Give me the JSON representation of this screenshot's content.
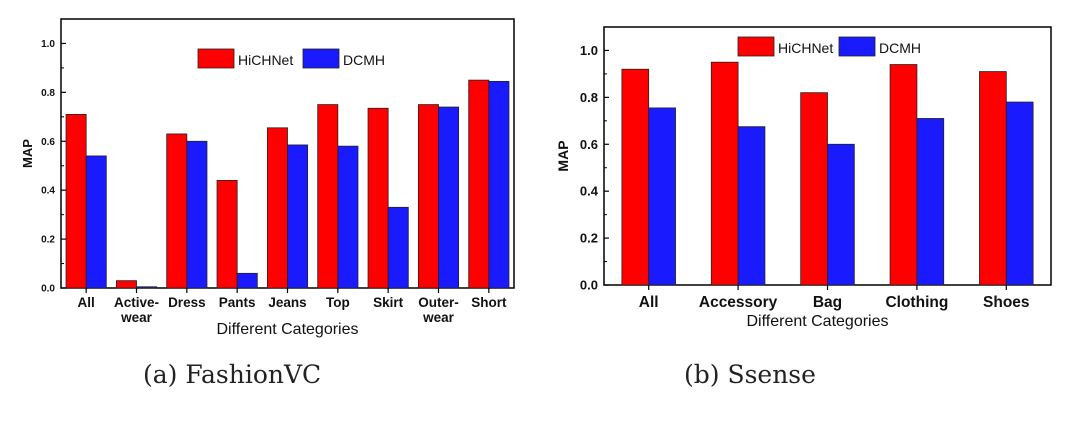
{
  "colors": {
    "series1": "#ff0000",
    "series2": "#1a1aff",
    "stroke": "#000000"
  },
  "chart_data": [
    {
      "type": "bar",
      "caption": "(a)  FashionVC",
      "categories": [
        [
          "All"
        ],
        [
          "Active-",
          "wear"
        ],
        [
          "Dress"
        ],
        [
          "Pants"
        ],
        [
          "Jeans"
        ],
        [
          "Top"
        ],
        [
          "Skirt"
        ],
        [
          "Outer-",
          "wear"
        ],
        [
          "Short"
        ]
      ],
      "series": [
        {
          "name": "HiCHNet",
          "values": [
            0.71,
            0.03,
            0.63,
            0.44,
            0.655,
            0.75,
            0.735,
            0.75,
            0.85
          ]
        },
        {
          "name": "DCMH",
          "values": [
            0.54,
            0.005,
            0.6,
            0.06,
            0.585,
            0.58,
            0.33,
            0.74,
            0.845
          ]
        }
      ],
      "ylabel": "MAP",
      "xlabel": "Different Categories",
      "ylim": [
        0,
        1.1
      ],
      "yticks": [
        "0.0",
        "0.2",
        "0.4",
        "0.6",
        "0.8",
        "1.0"
      ],
      "legend": "top-right"
    },
    {
      "type": "bar",
      "caption": "(b)  Ssense",
      "categories": [
        [
          "All"
        ],
        [
          "Accessory"
        ],
        [
          "Bag"
        ],
        [
          "Clothing"
        ],
        [
          "Shoes"
        ]
      ],
      "series": [
        {
          "name": "HiCHNet",
          "values": [
            0.92,
            0.95,
            0.82,
            0.94,
            0.91
          ]
        },
        {
          "name": "DCMH",
          "values": [
            0.755,
            0.675,
            0.6,
            0.71,
            0.78
          ]
        }
      ],
      "ylabel": "MAP",
      "xlabel": "Different Categories",
      "ylim": [
        0,
        1.1
      ],
      "yticks": [
        "0.0",
        "0.2",
        "0.4",
        "0.6",
        "0.8",
        "1.0"
      ],
      "legend": "top-center"
    }
  ]
}
